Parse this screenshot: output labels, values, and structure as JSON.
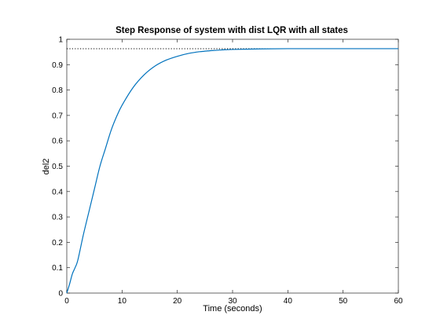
{
  "chart_data": {
    "type": "line",
    "title": "Step Response of system with dist LQR with all states",
    "xlabel": "Time (seconds)",
    "ylabel": "del2",
    "xlim": [
      0,
      60
    ],
    "ylim": [
      0,
      1
    ],
    "xticks": [
      0,
      10,
      20,
      30,
      40,
      50,
      60
    ],
    "yticks": [
      0,
      0.1,
      0.2,
      0.3,
      0.4,
      0.5,
      0.6,
      0.7,
      0.8,
      0.9,
      1
    ],
    "grid": false,
    "steady_state": 0.963,
    "series": [
      {
        "color": "#0072BD",
        "x": [
          0,
          0.5,
          1,
          1.5,
          2,
          3,
          4,
          5,
          6,
          7,
          8,
          9,
          10,
          12,
          14,
          16,
          18,
          20,
          22,
          24,
          26,
          28,
          30,
          35,
          40,
          45,
          50,
          55,
          60
        ],
        "y": [
          0,
          0.035,
          0.075,
          0.1,
          0.13,
          0.23,
          0.32,
          0.41,
          0.5,
          0.57,
          0.64,
          0.695,
          0.74,
          0.81,
          0.86,
          0.895,
          0.918,
          0.933,
          0.944,
          0.951,
          0.955,
          0.958,
          0.96,
          0.962,
          0.963,
          0.963,
          0.963,
          0.963,
          0.963
        ]
      }
    ]
  }
}
